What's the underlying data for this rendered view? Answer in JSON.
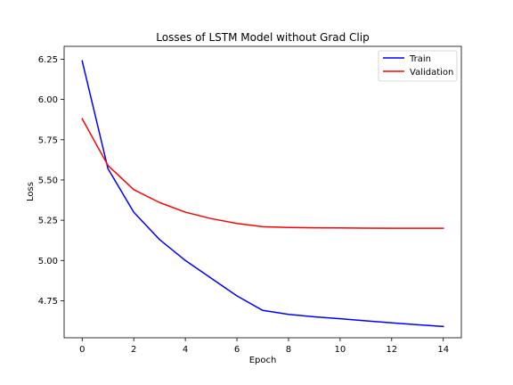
{
  "chart_data": {
    "type": "line",
    "title": "Losses of LSTM Model without Grad Clip",
    "xlabel": "Epoch",
    "ylabel": "Loss",
    "x": [
      0,
      1,
      2,
      3,
      4,
      5,
      6,
      7,
      8,
      9,
      10,
      11,
      12,
      13,
      14
    ],
    "xlim": [
      -0.7,
      14.7
    ],
    "ylim": [
      4.52,
      6.33
    ],
    "xticks": [
      0,
      2,
      4,
      6,
      8,
      10,
      12,
      14
    ],
    "xtick_labels": [
      "0",
      "2",
      "4",
      "6",
      "8",
      "10",
      "12",
      "14"
    ],
    "yticks": [
      4.75,
      5.0,
      5.25,
      5.5,
      5.75,
      6.0,
      6.25
    ],
    "ytick_labels": [
      "4.75",
      "5.00",
      "5.25",
      "5.50",
      "5.75",
      "6.00",
      "6.25"
    ],
    "grid": false,
    "legend_position": "top-right",
    "series": [
      {
        "name": "Train",
        "color": "#0000ff",
        "values": [
          6.24,
          5.57,
          5.3,
          5.13,
          5.0,
          4.89,
          4.78,
          4.69,
          4.665,
          4.65,
          4.638,
          4.625,
          4.613,
          4.601,
          4.59
        ]
      },
      {
        "name": "Validation",
        "color": "#ff0000",
        "values": [
          5.88,
          5.59,
          5.44,
          5.36,
          5.3,
          5.26,
          5.23,
          5.21,
          5.205,
          5.203,
          5.202,
          5.201,
          5.2,
          5.2,
          5.2
        ]
      }
    ]
  }
}
